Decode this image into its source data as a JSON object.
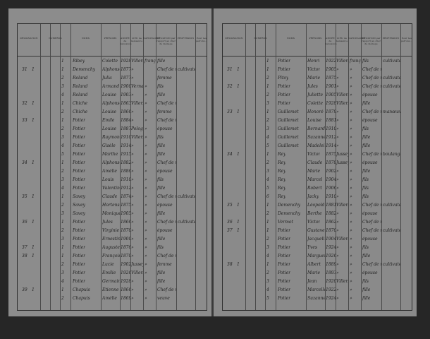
{
  "headers": [
    "DÉSIGNATION",
    "NUMÉROS",
    "NOMS",
    "PRÉNOMS",
    "ANNÉE de naissance",
    "LIEU de naissance",
    "NATIONALITÉ",
    "SITUATION par rapport au chef de ménage",
    "PROFESSION",
    "Pour les patrons..."
  ],
  "left_rows": [
    [
      "",
      "",
      "1",
      "Ribey",
      "Colette",
      "1928",
      "Villers",
      "française",
      "fille",
      ""
    ],
    [
      "31",
      "1",
      "1",
      "Demenchy",
      "Alphonse",
      "1877",
      "»",
      "",
      "Chef de m.",
      "cultivateur"
    ],
    [
      "",
      "",
      "2",
      "Roland",
      "Julia",
      "1877",
      "»",
      "",
      "femme",
      ""
    ],
    [
      "",
      "",
      "3",
      "Roland",
      "Armand",
      "1900",
      "Vernay",
      "»",
      "fils",
      ""
    ],
    [
      "",
      "",
      "4",
      "Roland",
      "Louise",
      "1903",
      "»",
      "»",
      "fille",
      ""
    ],
    [
      "32",
      "1",
      "1",
      "Chiche",
      "Alphonse",
      "1863",
      "Villers",
      "»",
      "Chef de m.",
      ""
    ],
    [
      "",
      "",
      "2",
      "Chiche",
      "Louise",
      "1866",
      "»",
      "»",
      "femme",
      ""
    ],
    [
      "33",
      "1",
      "1",
      "Potier",
      "Émile",
      "1884",
      "»",
      "»",
      "Chef de m.",
      ""
    ],
    [
      "",
      "",
      "2",
      "Potier",
      "Louise",
      "1887",
      "Pologny",
      "»",
      "épouse",
      ""
    ],
    [
      "",
      "",
      "3",
      "Potier",
      "Raymond",
      "1910",
      "Villers",
      "»",
      "fils",
      ""
    ],
    [
      "",
      "",
      "4",
      "Potier",
      "Gisèle",
      "1914",
      "»",
      "»",
      "fille",
      ""
    ],
    [
      "",
      "",
      "5",
      "Potier",
      "Marthe",
      "1915",
      "»",
      "»",
      "fille",
      ""
    ],
    [
      "34",
      "1",
      "1",
      "Potier",
      "Alphonse",
      "1882",
      "»",
      "»",
      "Chef de m.",
      ""
    ],
    [
      "",
      "",
      "2",
      "Potier",
      "Amélie",
      "1886",
      "»",
      "»",
      "épouse",
      ""
    ],
    [
      "",
      "",
      "3",
      "Potier",
      "Louis",
      "1910",
      "»",
      "»",
      "fils",
      ""
    ],
    [
      "",
      "",
      "4",
      "Potier",
      "Valentine",
      "1912",
      "»",
      "»",
      "fille",
      ""
    ],
    [
      "35",
      "1",
      "1",
      "Savey",
      "Claude",
      "1874",
      "»",
      "»",
      "Chef de m.",
      "cultivateur"
    ],
    [
      "",
      "",
      "2",
      "Savey",
      "Hortense",
      "1875",
      "»",
      "»",
      "épouse",
      ""
    ],
    [
      "",
      "",
      "3",
      "Savey",
      "Monique",
      "1905",
      "»",
      "»",
      "fille",
      ""
    ],
    [
      "36",
      "1",
      "1",
      "Potier",
      "Jules",
      "1866",
      "»",
      "»",
      "Chef de m.",
      "cultivateur"
    ],
    [
      "",
      "",
      "2",
      "Potier",
      "Virginie",
      "1870",
      "»",
      "»",
      "épouse",
      ""
    ],
    [
      "",
      "",
      "3",
      "Potier",
      "Ernestine",
      "1900",
      "»",
      "»",
      "fille",
      ""
    ],
    [
      "37",
      "1",
      "1",
      "Potier",
      "Auguste",
      "1876",
      "»",
      "»",
      "fils",
      ""
    ],
    [
      "38",
      "1",
      "1",
      "Potier",
      "François",
      "1870",
      "»",
      "»",
      "Chef de m.",
      ""
    ],
    [
      "",
      "",
      "2",
      "Potier",
      "Lucie",
      "1902",
      "Jussey",
      "»",
      "femme",
      ""
    ],
    [
      "",
      "",
      "3",
      "Potier",
      "Émilie",
      "1926",
      "Villers",
      "»",
      "fille",
      ""
    ],
    [
      "",
      "",
      "4",
      "Potier",
      "Germaine",
      "1928",
      "»",
      "»",
      "fille",
      ""
    ],
    [
      "39",
      "1",
      "1",
      "Chapuis",
      "Étienne",
      "1866",
      "»",
      "»",
      "Chef de m.",
      ""
    ],
    [
      "",
      "",
      "2",
      "Chapuis",
      "Amélie",
      "1869",
      "»",
      "»",
      "veuve",
      ""
    ]
  ],
  "right_rows": [
    [
      "",
      "",
      "1",
      "Potier",
      "Henri",
      "1922",
      "Villers",
      "française",
      "fils",
      "cultivateur"
    ],
    [
      "31",
      "1",
      "1",
      "Potier",
      "Victor",
      "1905",
      "»",
      "»",
      "Chef de m.",
      ""
    ],
    [
      "",
      "",
      "2",
      "Pitoy",
      "Marie",
      "1875",
      "»",
      "»",
      "Chef de m.",
      "cultivateur"
    ],
    [
      "32",
      "1",
      "1",
      "Potier",
      "Jules",
      "1901",
      "»",
      "»",
      "Chef de m.",
      "cultivateur"
    ],
    [
      "",
      "",
      "2",
      "Potier",
      "Juliette",
      "1905",
      "Villers",
      "»",
      "épouse",
      ""
    ],
    [
      "",
      "",
      "3",
      "Potier",
      "Colette",
      "1928",
      "Villers",
      "»",
      "fille",
      ""
    ],
    [
      "33",
      "1",
      "1",
      "Guillemet",
      "Honoré",
      "1879",
      "»",
      "»",
      "Chef de m.",
      "manœuvre"
    ],
    [
      "",
      "",
      "2",
      "Guillemet",
      "Louise",
      "1881",
      "»",
      "»",
      "épouse",
      ""
    ],
    [
      "",
      "",
      "3",
      "Guillemet",
      "Bernard",
      "1910",
      "»",
      "»",
      "fils",
      ""
    ],
    [
      "",
      "",
      "4",
      "Guillemet",
      "Suzanne",
      "1912",
      "»",
      "»",
      "fille",
      ""
    ],
    [
      "",
      "",
      "5",
      "Guillemet",
      "Madeleine",
      "1914",
      "»",
      "»",
      "fille",
      ""
    ],
    [
      "34",
      "1",
      "1",
      "Rey",
      "Victor",
      "1875",
      "Jussey",
      "»",
      "Chef de m.",
      "boulanger"
    ],
    [
      "",
      "",
      "2",
      "Rey",
      "Claude",
      "1878",
      "Jussey",
      "»",
      "épouse",
      ""
    ],
    [
      "",
      "",
      "3",
      "Rey",
      "Marie",
      "1902",
      "»",
      "»",
      "fille",
      ""
    ],
    [
      "",
      "",
      "4",
      "Rey",
      "Marcel",
      "1904",
      "»",
      "»",
      "fils",
      ""
    ],
    [
      "",
      "",
      "5",
      "Rey",
      "Robert",
      "1906",
      "»",
      "»",
      "fils",
      ""
    ],
    [
      "",
      "",
      "6",
      "Rey",
      "Jacky",
      "1910",
      "»",
      "»",
      "fils",
      ""
    ],
    [
      "35",
      "1",
      "1",
      "Demenchy",
      "Léopold",
      "1881",
      "Villers",
      "»",
      "Chef de m.",
      "cultivateur"
    ],
    [
      "",
      "",
      "2",
      "Demenchy",
      "Berthe",
      "1882",
      "»",
      "»",
      "épouse",
      ""
    ],
    [
      "36",
      "1",
      "1",
      "Vermot",
      "Victor",
      "1862",
      "»",
      "»",
      "Chef de m.",
      ""
    ],
    [
      "37",
      "1",
      "1",
      "Potier",
      "Gustave",
      "1870",
      "»",
      "»",
      "Chef de m.",
      "cultivateur"
    ],
    [
      "",
      "",
      "2",
      "Potier",
      "Jacqueline",
      "1904",
      "Villers",
      "»",
      "épouse",
      ""
    ],
    [
      "",
      "",
      "3",
      "Potier",
      "Yves",
      "1924",
      "»",
      "»",
      "fils",
      ""
    ],
    [
      "",
      "",
      "4",
      "Potier",
      "Marguerite",
      "1926",
      "»",
      "»",
      "fille",
      ""
    ],
    [
      "38",
      "1",
      "1",
      "Potier",
      "Albert",
      "1889",
      "»",
      "»",
      "Chef de m.",
      "cultivateur"
    ],
    [
      "",
      "",
      "2",
      "Potier",
      "Marie",
      "1893",
      "»",
      "»",
      "épouse",
      ""
    ],
    [
      "",
      "",
      "3",
      "Potier",
      "Jean",
      "1920",
      "Villers",
      "»",
      "fils",
      ""
    ],
    [
      "",
      "",
      "4",
      "Potier",
      "Marcelle",
      "1922",
      "»",
      "»",
      "fille",
      ""
    ],
    [
      "",
      "",
      "5",
      "Potier",
      "Suzanne",
      "1924",
      "»",
      "»",
      "fille",
      ""
    ]
  ]
}
